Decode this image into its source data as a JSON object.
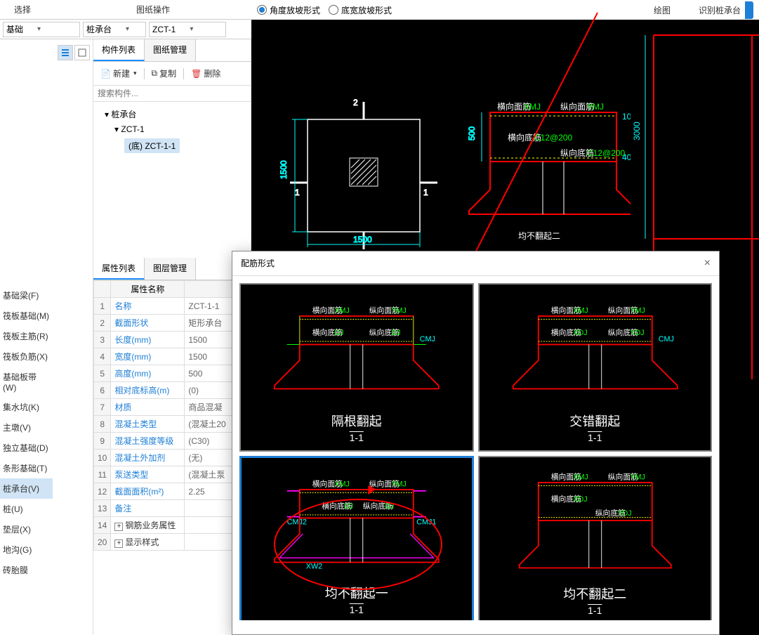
{
  "topbar": {
    "select_label": "选择",
    "drawing_ops": "图纸操作"
  },
  "dropdowns": {
    "d1": "基础",
    "d2": "桩承台",
    "d3": "ZCT-1"
  },
  "top_tabs": {
    "t1": "绘图",
    "t2": "识别桩承台"
  },
  "radio": {
    "r1": "角度放坡形式",
    "r2": "底宽放坡形式"
  },
  "blue_button": "配筋形式",
  "left_items": [
    "基础梁(F)",
    "筏板基础(M)",
    "筏板主筋(R)",
    "筏板负筋(X)",
    "基础板带(W)",
    "集水坑(K)",
    "主墩(V)",
    "独立基础(D)",
    "条形基础(T)",
    "桩承台(V)",
    "桩(U)",
    "垫层(X)",
    "地沟(G)",
    "砖胎膜"
  ],
  "left_selected_index": 9,
  "comp_tabs": {
    "t1": "构件列表",
    "t2": "图纸管理"
  },
  "toolbar": {
    "new": "新建",
    "copy": "复制",
    "delete": "删除"
  },
  "search_placeholder": "搜索构件...",
  "tree": {
    "n1": "桩承台",
    "n2": "ZCT-1",
    "n3": "(底) ZCT-1-1"
  },
  "prop_tabs": {
    "t1": "属性列表",
    "t2": "图层管理"
  },
  "prop_header": {
    "name": "属性名称",
    "value": ""
  },
  "props": [
    {
      "n": "1",
      "name": "名称",
      "val": "ZCT-1-1"
    },
    {
      "n": "2",
      "name": "截面形状",
      "val": "矩形承台"
    },
    {
      "n": "3",
      "name": "长度(mm)",
      "val": "1500"
    },
    {
      "n": "4",
      "name": "宽度(mm)",
      "val": "1500"
    },
    {
      "n": "5",
      "name": "高度(mm)",
      "val": "500"
    },
    {
      "n": "6",
      "name": "相对底标高(m)",
      "val": "(0)"
    },
    {
      "n": "7",
      "name": "材质",
      "val": "商品混凝"
    },
    {
      "n": "8",
      "name": "混凝土类型",
      "val": "(混凝土20"
    },
    {
      "n": "9",
      "name": "混凝土强度等级",
      "val": "(C30)"
    },
    {
      "n": "10",
      "name": "混凝土外加剂",
      "val": "(无)"
    },
    {
      "n": "11",
      "name": "泵送类型",
      "val": "(混凝土泵"
    },
    {
      "n": "12",
      "name": "截面面积(m²)",
      "val": "2.25"
    },
    {
      "n": "13",
      "name": "备注",
      "val": ""
    },
    {
      "n": "14",
      "name": "钢筋业务属性",
      "val": "",
      "plus": true
    },
    {
      "n": "20",
      "name": "显示样式",
      "val": "",
      "plus": true
    }
  ],
  "modal": {
    "title": "配筋形式"
  },
  "options": [
    {
      "label": "隔根翻起",
      "sub": "1-1"
    },
    {
      "label": "交错翻起",
      "sub": "1-1"
    },
    {
      "label": "均不翻起一",
      "sub": "1-1"
    },
    {
      "label": "均不翻起二",
      "sub": "1-1"
    }
  ],
  "modal_selected_index": 2,
  "cad": {
    "dim_1500": "1500",
    "dim_500": "500",
    "sec_1": "1",
    "sec_2": "2",
    "lbl_hxmj": "横向面筋",
    "lbl_zxmj": "纵向面筋",
    "lbl_hxdj": "横向底筋",
    "lbl_zxdj": "纵向底筋",
    "lbl_xmj": "XMJ",
    "lbl_ymj": "YMJ",
    "lbl_xdj": "XDJ",
    "lbl_ydj": "YDJ",
    "lbl_c12": "C12@200",
    "lbl_junbu": "均不翻起二",
    "ruler_3000": "3000",
    "lbl_cmj": "CMJ",
    "lbl_cmj1": "CMJ1",
    "lbl_cmj2": "CMJ2",
    "lbl_xw2": "XW2",
    "colors": {
      "white": "#ffffff",
      "cyan": "#00ffff",
      "red": "#ff0000",
      "yellow": "#ffff00",
      "green": "#00ff00",
      "magenta": "#ff00ff",
      "grid": "#3a3a3a"
    }
  }
}
